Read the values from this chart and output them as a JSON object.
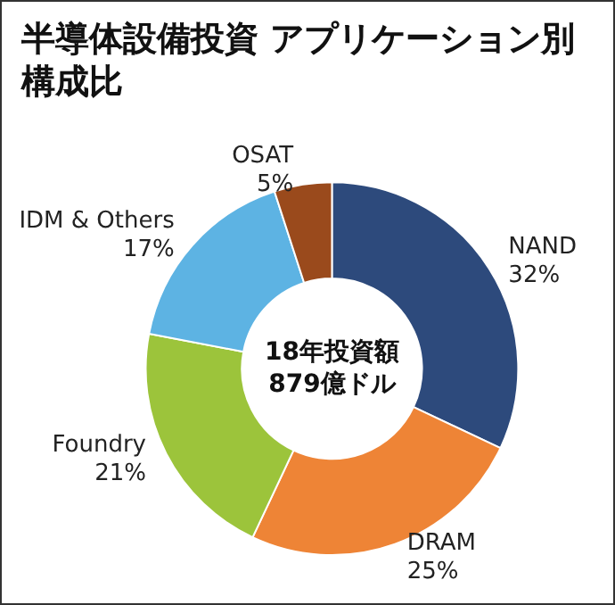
{
  "chart_data": {
    "type": "donut",
    "title": "半導体設備投資 アプリケーション別構成比",
    "categories": [
      "NAND",
      "DRAM",
      "Foundry",
      "IDM & Others",
      "OSAT"
    ],
    "values": [
      32,
      25,
      21,
      17,
      5
    ],
    "value_labels": [
      "32%",
      "25%",
      "21%",
      "17%",
      "5%"
    ],
    "colors": [
      "#2d4a7c",
      "#ee8436",
      "#9cc43b",
      "#5db3e3",
      "#9a4a1c"
    ],
    "annotations": [
      "18年投資額\n879億ドル"
    ],
    "legend": false
  }
}
